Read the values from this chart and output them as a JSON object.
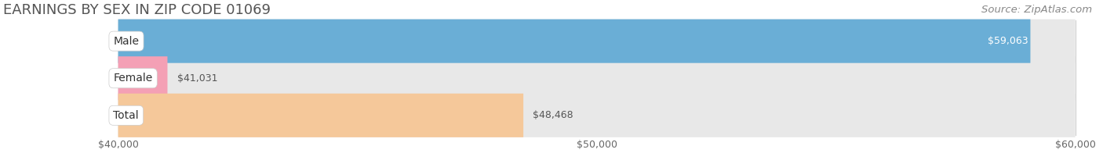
{
  "title": "EARNINGS BY SEX IN ZIP CODE 01069",
  "source": "Source: ZipAtlas.com",
  "categories": [
    "Male",
    "Female",
    "Total"
  ],
  "values": [
    59063,
    41031,
    48468
  ],
  "bar_colors": [
    "#6aaed6",
    "#f4a0b5",
    "#f5c89a"
  ],
  "value_labels": [
    "$59,063",
    "$41,031",
    "$48,468"
  ],
  "xmin": 40000,
  "xmax": 60000,
  "xticks": [
    40000,
    50000,
    60000
  ],
  "xtick_labels": [
    "$40,000",
    "$50,000",
    "$60,000"
  ],
  "bg_color": "#ffffff",
  "bar_bg_color": "#e8e8e8",
  "title_fontsize": 13,
  "source_fontsize": 9.5,
  "bar_height": 0.62,
  "value_label_fontsize": 9,
  "cat_label_fontsize": 10,
  "tick_fontsize": 9
}
